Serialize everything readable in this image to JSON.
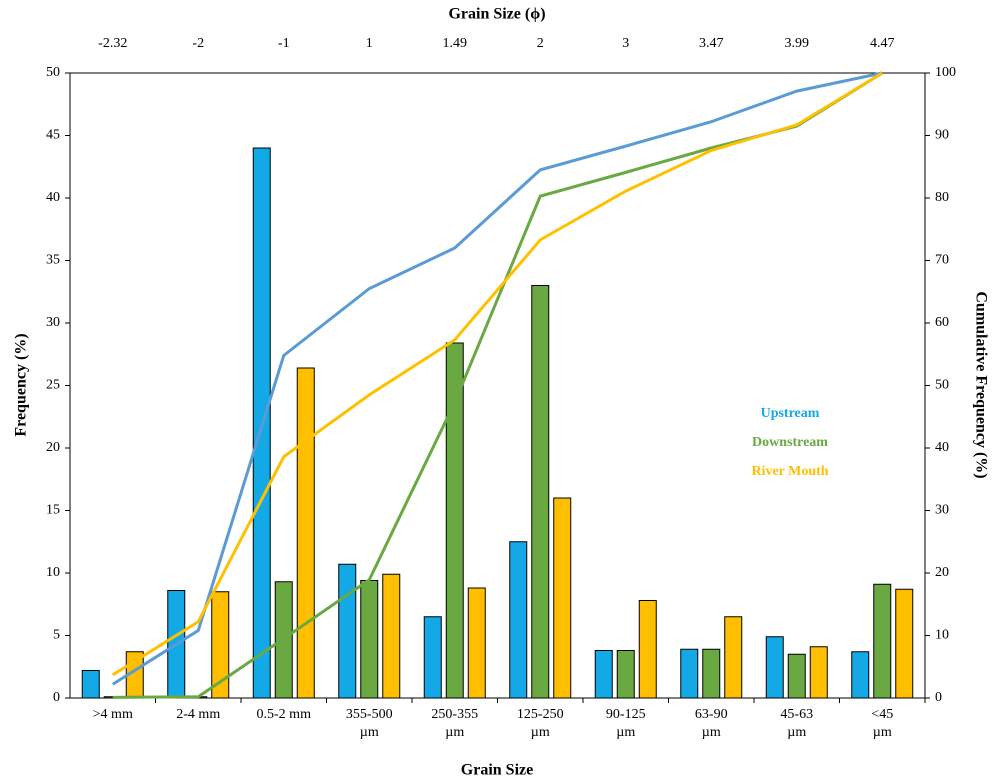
{
  "chart_data": {
    "type": "bar",
    "title": "Grain Size (ϕ)",
    "top_labels": [
      "-2.32",
      "-2",
      "-1",
      "1",
      "1.49",
      "2",
      "3",
      "3.47",
      "3.99",
      "4.47"
    ],
    "x_label": "Grain Size",
    "y_label": "Frequency (%)",
    "y2_label": "Cumulative Frequency (%)",
    "categories": [
      ">4 mm",
      "2-4 mm",
      "0.5-2 mm",
      "355-500\nµm",
      "250-355\nµm",
      "125-250\nµm",
      "90-125\nµm",
      "63-90\nµm",
      "45-63\nµm",
      "<45\nµm"
    ],
    "series": [
      {
        "name": "Upstream",
        "color": "#12a9e6",
        "values": [
          2.2,
          8.6,
          44,
          10.7,
          6.5,
          12.5,
          3.8,
          3.9,
          4.9,
          3.7
        ]
      },
      {
        "name": "Downstream",
        "color": "#6aa842",
        "values": [
          0.1,
          0.1,
          9.3,
          9.4,
          28.4,
          33,
          3.8,
          3.9,
          3.5,
          9.1
        ]
      },
      {
        "name": "River Mouth",
        "color": "#ffbf00",
        "values": [
          3.7,
          8.5,
          26.4,
          9.9,
          8.8,
          16,
          7.8,
          6.5,
          4.1,
          8.7
        ]
      }
    ],
    "line_series": [
      {
        "name": "Upstream",
        "axis": "y2",
        "color": "#5b9bd5",
        "values": [
          2.2,
          10.8,
          54.8,
          65.5,
          72,
          84.5,
          88.3,
          92.2,
          97.1,
          100
        ]
      },
      {
        "name": "Downstream",
        "axis": "y2",
        "color": "#6aa842",
        "values": [
          0.1,
          0.2,
          9.5,
          18.9,
          47.3,
          80.3,
          84.1,
          88,
          91.5,
          100
        ]
      },
      {
        "name": "River Mouth",
        "axis": "y2",
        "color": "#ffc000",
        "values": [
          3.7,
          12.2,
          38.6,
          48.5,
          57.3,
          73.3,
          81.1,
          87.6,
          91.7,
          100
        ]
      }
    ],
    "ylim": [
      0,
      50
    ],
    "yticks": [
      0,
      5,
      10,
      15,
      20,
      25,
      30,
      35,
      40,
      45,
      50
    ],
    "y2lim": [
      0,
      100
    ],
    "y2ticks": [
      0,
      10,
      20,
      30,
      40,
      50,
      60,
      70,
      80,
      90,
      100
    ],
    "legend": "right",
    "grid": false
  }
}
